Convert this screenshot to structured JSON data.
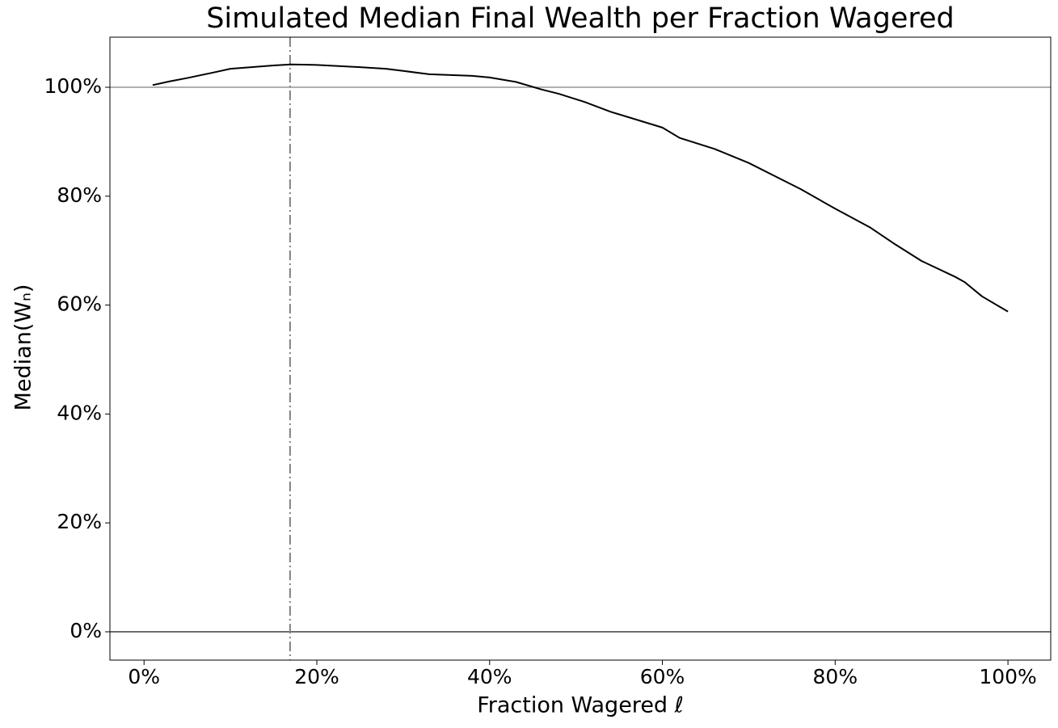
{
  "chart_data": {
    "type": "line",
    "title": "Simulated Median Final Wealth per Fraction Wagered",
    "x_label": "Fraction Wagered ℓ",
    "y_label": "Median(Wₙ)",
    "x": [
      1,
      3,
      5,
      8,
      10,
      15,
      17,
      20,
      25,
      28,
      30,
      33,
      38,
      40,
      43,
      46,
      48,
      51,
      54,
      60,
      62,
      66,
      70,
      74,
      76,
      80,
      84,
      87,
      90,
      94,
      95,
      97,
      100
    ],
    "series": [
      {
        "color": "#000000",
        "values": [
          100.4,
          101.1,
          101.7,
          102.7,
          103.4,
          104.0,
          104.2,
          104.1,
          103.7,
          103.4,
          103.0,
          102.4,
          102.1,
          101.8,
          101.0,
          99.6,
          98.8,
          97.3,
          95.5,
          92.6,
          90.7,
          88.7,
          86.1,
          82.9,
          81.3,
          77.7,
          74.3,
          71.1,
          68.1,
          65.1,
          64.2,
          61.6,
          58.8
        ]
      }
    ],
    "xlim": [
      -3.95,
      104.95
    ],
    "ylim": [
      -5.2,
      109.2
    ],
    "xticks": [
      {
        "value": 0,
        "label": "0%"
      },
      {
        "value": 20,
        "label": "20%"
      },
      {
        "value": 40,
        "label": "40%"
      },
      {
        "value": 60,
        "label": "60%"
      },
      {
        "value": 80,
        "label": "80%"
      },
      {
        "value": 100,
        "label": "100%"
      }
    ],
    "yticks": [
      {
        "value": 0,
        "label": "0%"
      },
      {
        "value": 20,
        "label": "20%"
      },
      {
        "value": 40,
        "label": "40%"
      },
      {
        "value": 60,
        "label": "60%"
      },
      {
        "value": 80,
        "label": "80%"
      },
      {
        "value": 100,
        "label": "100%"
      }
    ],
    "vline": {
      "x": 16.9,
      "color": "#808080"
    },
    "hlines": [
      {
        "y": 100,
        "color": "#808080"
      },
      {
        "y": 0,
        "color": "#000000"
      }
    ]
  }
}
